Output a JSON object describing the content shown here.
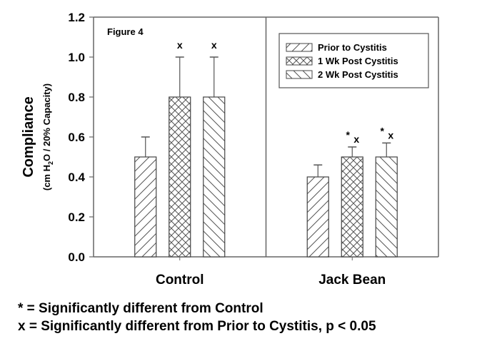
{
  "chart_data": {
    "type": "bar",
    "title": "Figure 4",
    "xlabel": "",
    "ylabel": "Compliance",
    "ylabel_sub_parts": [
      "(cm H",
      "2",
      "O / 20% Capacity)"
    ],
    "ylim": [
      0,
      1.2
    ],
    "yticks": [
      "0.0",
      "0.2",
      "0.4",
      "0.6",
      "0.8",
      "1.0",
      "1.2"
    ],
    "ytick_values": [
      0,
      0.2,
      0.4,
      0.6,
      0.8,
      1.0,
      1.2
    ],
    "grid": false,
    "legend_position": "top-right",
    "categories": [
      "Control",
      "Jack Bean"
    ],
    "series": [
      {
        "name": "Prior to Cystitis",
        "pattern": "forward-diagonal",
        "values": [
          0.5,
          0.4
        ],
        "error_upper": [
          0.1,
          0.06
        ],
        "markers": [
          "",
          ""
        ]
      },
      {
        "name": "1 Wk Post Cystitis",
        "pattern": "crosshatch",
        "values": [
          0.8,
          0.5
        ],
        "error_upper": [
          0.2,
          0.05
        ],
        "markers": [
          "x",
          "*x"
        ]
      },
      {
        "name": "2 Wk Post Cystitis",
        "pattern": "back-diagonal",
        "values": [
          0.8,
          0.5
        ],
        "error_upper": [
          0.2,
          0.07
        ],
        "markers": [
          "x",
          "*x"
        ]
      }
    ],
    "notes": [
      "* = Significantly different from Control",
      "x = Significantly different from Prior to Cystitis, p < 0.05"
    ]
  }
}
